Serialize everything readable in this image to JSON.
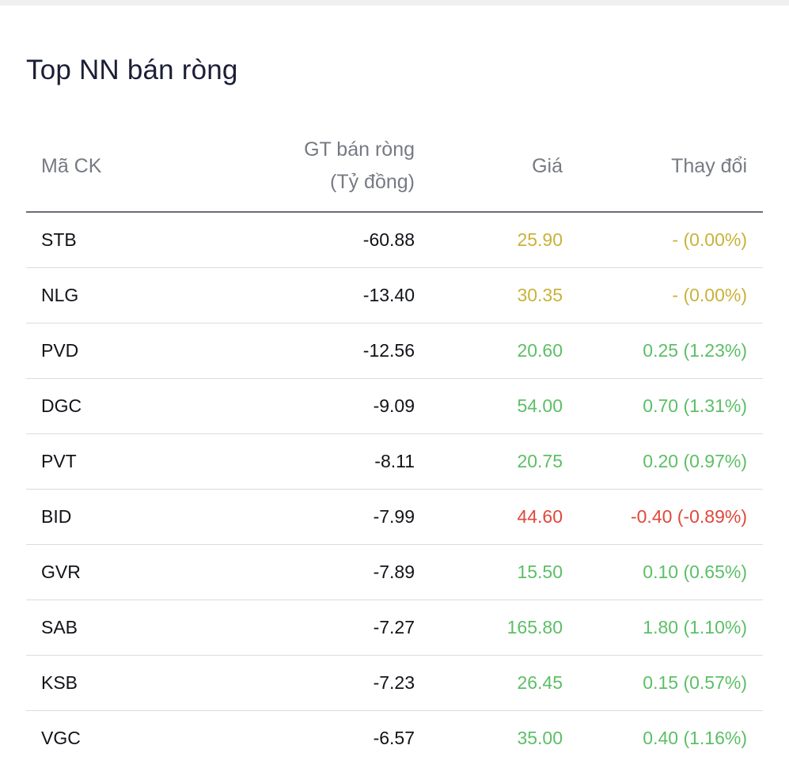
{
  "title": "Top NN bán ròng",
  "columns": {
    "code": "Mã CK",
    "value_line1": "GT bán ròng",
    "value_line2": "(Tỷ đồng)",
    "price": "Giá",
    "change": "Thay đổi"
  },
  "colors": {
    "reference": "#c9b23a",
    "up": "#5cbf66",
    "down": "#e0483b"
  },
  "rows": [
    {
      "code": "STB",
      "value": "-60.88",
      "price": "25.90",
      "change": "- (0.00%)",
      "status": "ref"
    },
    {
      "code": "NLG",
      "value": "-13.40",
      "price": "30.35",
      "change": "- (0.00%)",
      "status": "ref"
    },
    {
      "code": "PVD",
      "value": "-12.56",
      "price": "20.60",
      "change": "0.25 (1.23%)",
      "status": "up"
    },
    {
      "code": "DGC",
      "value": "-9.09",
      "price": "54.00",
      "change": "0.70 (1.31%)",
      "status": "up"
    },
    {
      "code": "PVT",
      "value": "-8.11",
      "price": "20.75",
      "change": "0.20 (0.97%)",
      "status": "up"
    },
    {
      "code": "BID",
      "value": "-7.99",
      "price": "44.60",
      "change": "-0.40 (-0.89%)",
      "status": "down"
    },
    {
      "code": "GVR",
      "value": "-7.89",
      "price": "15.50",
      "change": "0.10 (0.65%)",
      "status": "up"
    },
    {
      "code": "SAB",
      "value": "-7.27",
      "price": "165.80",
      "change": "1.80 (1.10%)",
      "status": "up"
    },
    {
      "code": "KSB",
      "value": "-7.23",
      "price": "26.45",
      "change": "0.15 (0.57%)",
      "status": "up"
    },
    {
      "code": "VGC",
      "value": "-6.57",
      "price": "35.00",
      "change": "0.40 (1.16%)",
      "status": "up"
    }
  ]
}
